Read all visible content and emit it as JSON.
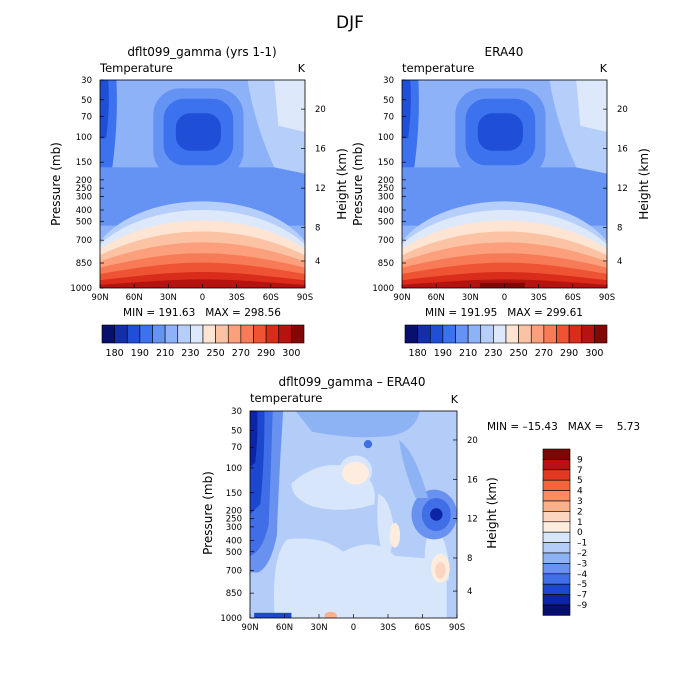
{
  "figure": {
    "title": "DJF"
  },
  "chart_data": [
    {
      "type": "contour",
      "panel_title": "dflt099_gamma (yrs 1-1)",
      "field_label": "Temperature",
      "units": "K",
      "ylabel": "Pressure (mb)",
      "y2label": "Height (km)",
      "x_ticks": [
        "90N",
        "60N",
        "30N",
        "0",
        "30S",
        "60S",
        "90S"
      ],
      "y_ticks": [
        "30",
        "50",
        "70",
        "100",
        "150",
        "200",
        "250",
        "300",
        "400",
        "500",
        "700",
        "850",
        "1000"
      ],
      "y2_ticks": [
        "20",
        "16",
        "12",
        "8",
        "4"
      ],
      "stats_text": "MIN = 191.63   MAX = 298.56",
      "min": 191.63,
      "max": 298.56,
      "colorbar": {
        "labels": [
          "180",
          "190",
          "210",
          "230",
          "250",
          "270",
          "290",
          "300"
        ]
      }
    },
    {
      "type": "contour",
      "panel_title": "ERA40",
      "field_label": "temperature",
      "units": "K",
      "ylabel": "Pressure (mb)",
      "y2label": "Height (km)",
      "x_ticks": [
        "90N",
        "60N",
        "30N",
        "0",
        "30S",
        "60S",
        "90S"
      ],
      "y_ticks": [
        "30",
        "50",
        "70",
        "100",
        "150",
        "200",
        "250",
        "300",
        "400",
        "500",
        "700",
        "850",
        "1000"
      ],
      "y2_ticks": [
        "20",
        "16",
        "12",
        "8",
        "4"
      ],
      "stats_text": "MIN = 191.95   MAX = 299.61",
      "min": 191.95,
      "max": 299.61,
      "colorbar": {
        "labels": [
          "180",
          "190",
          "210",
          "230",
          "250",
          "270",
          "290",
          "300"
        ]
      }
    },
    {
      "type": "contour",
      "panel_title": "dflt099_gamma – ERA40",
      "field_label": "temperature",
      "units": "K",
      "ylabel": "Pressure (mb)",
      "y2label": "Height (km)",
      "x_ticks": [
        "90N",
        "60N",
        "30N",
        "0",
        "30S",
        "60S",
        "90S"
      ],
      "y_ticks": [
        "30",
        "50",
        "70",
        "100",
        "150",
        "200",
        "250",
        "300",
        "400",
        "500",
        "700",
        "850",
        "1000"
      ],
      "y2_ticks": [
        "20",
        "16",
        "12",
        "8",
        "4"
      ],
      "stats_text": "MIN = –15.43   MAX =    5.73",
      "min": -15.43,
      "max": 5.73,
      "colorbar": {
        "labels": [
          "9",
          "7",
          "5",
          "4",
          "3",
          "2",
          "1",
          "0",
          "–1",
          "–2",
          "–3",
          "–4",
          "–5",
          "–7",
          "–9"
        ]
      }
    }
  ],
  "colors": {
    "temperature_scale": [
      "#08106e",
      "#122fa8",
      "#1f4fd6",
      "#3d72ee",
      "#6593f4",
      "#8eb2f7",
      "#b6cffa",
      "#dde9fb",
      "#fde4d3",
      "#fcc2a4",
      "#fb9f7c",
      "#f77b57",
      "#ee5433",
      "#d92c1b",
      "#b4130f",
      "#820808"
    ],
    "difference_scale": [
      "#7a0606",
      "#b5130f",
      "#e23a22",
      "#f4653e",
      "#f98c63",
      "#fbb08c",
      "#fcd5c0",
      "#feecdf",
      "#d7e6fb",
      "#b3cdf8",
      "#8eb3f5",
      "#6992f0",
      "#3f6ee6",
      "#1c47cf",
      "#0c24a5",
      "#060f6e"
    ]
  }
}
